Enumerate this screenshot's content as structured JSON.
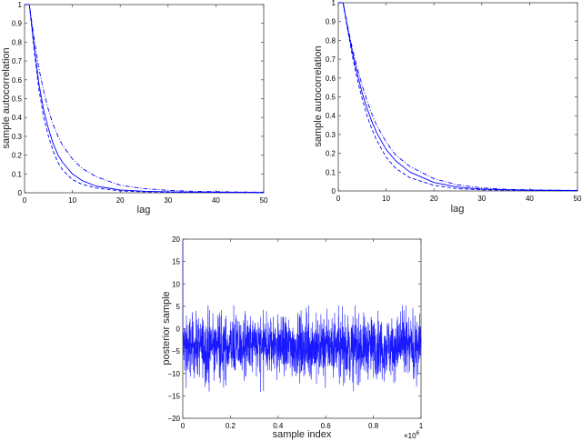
{
  "chart_data": [
    {
      "id": "acf_left",
      "type": "line",
      "title": "",
      "xlabel": "lag",
      "ylabel": "sample autocorrelation",
      "xlim": [
        0,
        50
      ],
      "ylim": [
        0,
        1
      ],
      "xticks": [
        0,
        10,
        20,
        30,
        40,
        50
      ],
      "yticks": [
        0,
        0.1,
        0.2,
        0.3,
        0.4,
        0.5,
        0.6,
        0.7,
        0.8,
        0.9,
        1
      ],
      "grid": false,
      "legend": null,
      "color": "#0000ff",
      "x": [
        0,
        1,
        2,
        3,
        4,
        5,
        6,
        7,
        8,
        10,
        12,
        15,
        20,
        25,
        30,
        35,
        40,
        45,
        50
      ],
      "series": [
        {
          "name": "solid",
          "linestyle": "solid",
          "values": [
            1.0,
            1.0,
            0.78,
            0.58,
            0.44,
            0.34,
            0.26,
            0.2,
            0.16,
            0.1,
            0.065,
            0.035,
            0.015,
            0.008,
            0.005,
            0.004,
            0.003,
            0.002,
            0.002
          ]
        },
        {
          "name": "dashed",
          "linestyle": "dashed",
          "values": [
            1.0,
            1.0,
            0.76,
            0.55,
            0.4,
            0.3,
            0.22,
            0.16,
            0.12,
            0.07,
            0.045,
            0.025,
            0.01,
            0.005,
            0.003,
            0.002,
            0.002,
            0.001,
            0.001
          ]
        },
        {
          "name": "dash-dot",
          "linestyle": "dashdot",
          "values": [
            1.0,
            1.0,
            0.82,
            0.66,
            0.54,
            0.44,
            0.36,
            0.3,
            0.25,
            0.18,
            0.13,
            0.085,
            0.04,
            0.022,
            0.013,
            0.008,
            0.006,
            0.004,
            0.003
          ]
        }
      ]
    },
    {
      "id": "acf_right",
      "type": "line",
      "title": "",
      "xlabel": "lag",
      "ylabel": "sample autocorrelation",
      "xlim": [
        0,
        50
      ],
      "ylim": [
        0,
        1
      ],
      "xticks": [
        0,
        10,
        20,
        30,
        40,
        50
      ],
      "yticks": [
        0,
        0.1,
        0.2,
        0.3,
        0.4,
        0.5,
        0.6,
        0.7,
        0.8,
        0.9,
        1
      ],
      "grid": false,
      "legend": null,
      "color": "#0000ff",
      "x": [
        0,
        1,
        2,
        3,
        4,
        5,
        6,
        7,
        8,
        10,
        12,
        15,
        20,
        25,
        30,
        35,
        40,
        45,
        50
      ],
      "series": [
        {
          "name": "solid",
          "linestyle": "solid",
          "values": [
            1.0,
            1.0,
            0.86,
            0.73,
            0.62,
            0.52,
            0.44,
            0.37,
            0.31,
            0.22,
            0.16,
            0.1,
            0.045,
            0.02,
            0.01,
            0.006,
            0.004,
            0.003,
            0.002
          ]
        },
        {
          "name": "dashed",
          "linestyle": "dashed",
          "values": [
            1.0,
            1.0,
            0.85,
            0.71,
            0.59,
            0.49,
            0.4,
            0.33,
            0.27,
            0.18,
            0.12,
            0.07,
            0.03,
            0.012,
            0.006,
            0.004,
            0.003,
            0.002,
            0.001
          ]
        },
        {
          "name": "dash-dot",
          "linestyle": "dashdot",
          "values": [
            1.0,
            1.0,
            0.87,
            0.75,
            0.65,
            0.56,
            0.48,
            0.41,
            0.35,
            0.26,
            0.19,
            0.13,
            0.065,
            0.032,
            0.016,
            0.009,
            0.006,
            0.004,
            0.003
          ]
        }
      ]
    },
    {
      "id": "trace_bottom",
      "type": "line",
      "title": "",
      "xlabel": "sample index",
      "ylabel": "posterior sample",
      "xlim": [
        0,
        1
      ],
      "ylim": [
        -20,
        20
      ],
      "x_multiplier": "×10^6",
      "xticks": [
        0,
        0.2,
        0.4,
        0.6,
        0.8,
        1
      ],
      "yticks": [
        -20,
        -15,
        -10,
        -5,
        0,
        5,
        10,
        15,
        20
      ],
      "grid": false,
      "legend": null,
      "color": "#0000ff",
      "description": "MCMC trace: starts near 20 at index 0, then fluctuates around mean -4, bulk range about -9 to 1, spikes reaching roughly +5 and -15.5",
      "initial_value": 20,
      "mean": -4,
      "bulk_range": [
        -9,
        1
      ],
      "extremes": [
        -15.5,
        5.2
      ]
    }
  ],
  "labels": {
    "left_xlabel": "lag",
    "left_ylabel": "sample autocorrelation",
    "right_xlabel": "lag",
    "right_ylabel": "sample autocorrelation",
    "bottom_xlabel": "sample index",
    "bottom_ylabel": "posterior sample",
    "bottom_multiplier_base": "×10",
    "bottom_multiplier_exp": "6"
  }
}
